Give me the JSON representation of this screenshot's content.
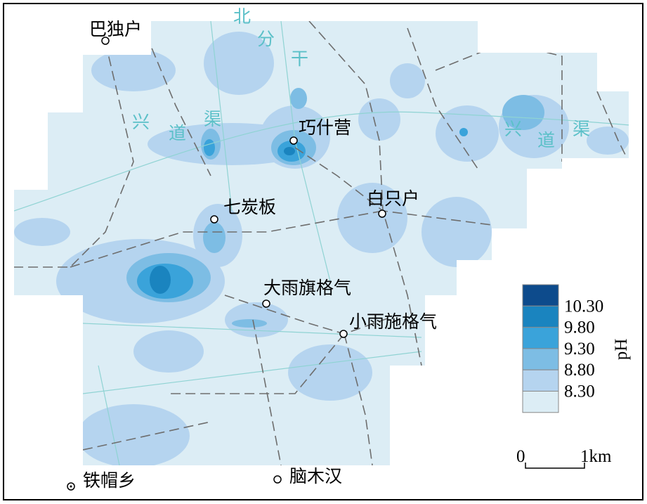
{
  "places": [
    {
      "label": "巴独户"
    },
    {
      "label": "巧什营"
    },
    {
      "label": "七炭板"
    },
    {
      "label": "白只户"
    },
    {
      "label": "大雨旗格气"
    },
    {
      "label": "小雨施格气"
    },
    {
      "label": "铁帽乡"
    },
    {
      "label": "脑木汉"
    }
  ],
  "canals": [
    {
      "chars": [
        "北",
        "分",
        "干"
      ]
    },
    {
      "chars": [
        "兴",
        "道",
        "渠"
      ]
    },
    {
      "chars": [
        "兴",
        "道",
        "渠"
      ]
    }
  ],
  "legend": {
    "title": "pH",
    "labels": [
      "10.30",
      "9.80",
      "9.30",
      "8.80",
      "8.30"
    ],
    "colors": [
      "#0d4b8c",
      "#1a84bf",
      "#3aa3da",
      "#7dbde4",
      "#b5d4ef",
      "#dcedf5"
    ]
  },
  "scale_bar": {
    "labels": [
      "0",
      "1km"
    ]
  }
}
